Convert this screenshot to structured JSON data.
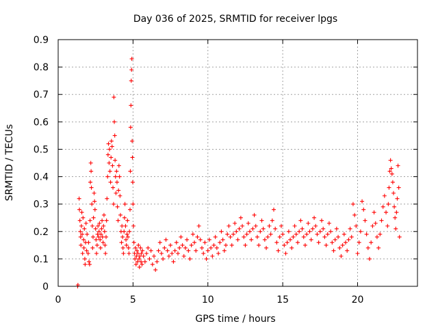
{
  "chart_data": {
    "type": "scatter",
    "title": "Day 036 of 2025, SRMTID for receiver lpgs",
    "xlabel": "GPS time / hours",
    "ylabel": "SRMTID / TECUs",
    "xlim": [
      0,
      24
    ],
    "ylim": [
      0,
      0.9
    ],
    "xticks": [
      0,
      5,
      10,
      15,
      20
    ],
    "xtick_labels": [
      "0",
      "5",
      "10",
      "15",
      "20"
    ],
    "yticks": [
      0,
      0.1,
      0.2,
      0.3,
      0.4,
      0.5,
      0.6,
      0.7,
      0.8,
      0.9
    ],
    "ytick_labels": [
      "0",
      "0.1",
      "0.2",
      "0.3",
      "0.4",
      "0.5",
      "0.6",
      "0.7",
      "0.8",
      "0.9"
    ],
    "grid": true,
    "marker": "plus",
    "color": "#ff0000",
    "series": [
      {
        "name": "SRMTID",
        "points": [
          [
            1.3,
            0.0
          ],
          [
            1.32,
            0.005
          ],
          [
            1.4,
            0.32
          ],
          [
            1.42,
            0.28
          ],
          [
            1.45,
            0.24
          ],
          [
            1.48,
            0.2
          ],
          [
            1.5,
            0.18
          ],
          [
            1.52,
            0.15
          ],
          [
            1.55,
            0.22
          ],
          [
            1.58,
            0.27
          ],
          [
            1.6,
            0.19
          ],
          [
            1.63,
            0.12
          ],
          [
            1.66,
            0.25
          ],
          [
            1.7,
            0.17
          ],
          [
            1.72,
            0.14
          ],
          [
            1.75,
            0.21
          ],
          [
            1.78,
            0.1
          ],
          [
            1.8,
            0.08
          ],
          [
            1.83,
            0.16
          ],
          [
            1.86,
            0.23
          ],
          [
            1.9,
            0.13
          ],
          [
            1.93,
            0.19
          ],
          [
            2.0,
            0.12
          ],
          [
            2.03,
            0.16
          ],
          [
            2.06,
            0.09
          ],
          [
            2.1,
            0.08
          ],
          [
            2.13,
            0.24
          ],
          [
            2.15,
            0.38
          ],
          [
            2.18,
            0.45
          ],
          [
            2.2,
            0.42
          ],
          [
            2.22,
            0.36
          ],
          [
            2.25,
            0.3
          ],
          [
            2.28,
            0.22
          ],
          [
            2.3,
            0.14
          ],
          [
            2.33,
            0.18
          ],
          [
            2.36,
            0.25
          ],
          [
            2.4,
            0.34
          ],
          [
            2.43,
            0.31
          ],
          [
            2.46,
            0.28
          ],
          [
            2.5,
            0.21
          ],
          [
            2.53,
            0.17
          ],
          [
            2.56,
            0.12
          ],
          [
            2.6,
            0.15
          ],
          [
            2.63,
            0.19
          ],
          [
            2.66,
            0.22
          ],
          [
            2.7,
            0.18
          ],
          [
            2.73,
            0.2
          ],
          [
            2.76,
            0.23
          ],
          [
            2.8,
            0.17
          ],
          [
            2.83,
            0.14
          ],
          [
            2.86,
            0.19
          ],
          [
            2.9,
            0.21
          ],
          [
            2.93,
            0.24
          ],
          [
            2.96,
            0.18
          ],
          [
            3.0,
            0.16
          ],
          [
            3.03,
            0.22
          ],
          [
            3.06,
            0.26
          ],
          [
            3.1,
            0.2
          ],
          [
            3.13,
            0.15
          ],
          [
            3.16,
            0.12
          ],
          [
            3.2,
            0.18
          ],
          [
            3.23,
            0.24
          ],
          [
            3.26,
            0.32
          ],
          [
            3.3,
            0.4
          ],
          [
            3.33,
            0.48
          ],
          [
            3.36,
            0.52
          ],
          [
            3.4,
            0.45
          ],
          [
            3.43,
            0.5
          ],
          [
            3.46,
            0.42
          ],
          [
            3.5,
            0.38
          ],
          [
            3.53,
            0.47
          ],
          [
            3.56,
            0.53
          ],
          [
            3.6,
            0.51
          ],
          [
            3.63,
            0.44
          ],
          [
            3.66,
            0.36
          ],
          [
            3.7,
            0.3
          ],
          [
            3.72,
            0.69
          ],
          [
            3.75,
            0.6
          ],
          [
            3.78,
            0.55
          ],
          [
            3.8,
            0.46
          ],
          [
            3.83,
            0.4
          ],
          [
            3.86,
            0.34
          ],
          [
            3.9,
            0.42
          ],
          [
            3.93,
            0.38
          ],
          [
            3.96,
            0.29
          ],
          [
            4.0,
            0.24
          ],
          [
            4.03,
            0.35
          ],
          [
            4.06,
            0.44
          ],
          [
            4.1,
            0.4
          ],
          [
            4.13,
            0.33
          ],
          [
            4.16,
            0.26
          ],
          [
            4.2,
            0.2
          ],
          [
            4.23,
            0.16
          ],
          [
            4.26,
            0.22
          ],
          [
            4.3,
            0.18
          ],
          [
            4.33,
            0.14
          ],
          [
            4.36,
            0.12
          ],
          [
            4.4,
            0.2
          ],
          [
            4.43,
            0.25
          ],
          [
            4.46,
            0.3
          ],
          [
            4.5,
            0.22
          ],
          [
            4.53,
            0.17
          ],
          [
            4.56,
            0.15
          ],
          [
            4.6,
            0.19
          ],
          [
            4.63,
            0.24
          ],
          [
            4.66,
            0.18
          ],
          [
            4.7,
            0.14
          ],
          [
            4.73,
            0.12
          ],
          [
            4.76,
            0.2
          ],
          [
            4.8,
            0.28
          ],
          [
            4.82,
            0.42
          ],
          [
            4.84,
            0.58
          ],
          [
            4.86,
            0.66
          ],
          [
            4.88,
            0.75
          ],
          [
            4.9,
            0.79
          ],
          [
            4.92,
            0.83
          ],
          [
            4.94,
            0.53
          ],
          [
            4.96,
            0.47
          ],
          [
            4.98,
            0.38
          ],
          [
            5.0,
            0.3
          ],
          [
            5.03,
            0.22
          ],
          [
            5.06,
            0.16
          ],
          [
            5.1,
            0.12
          ],
          [
            5.13,
            0.1
          ],
          [
            5.16,
            0.14
          ],
          [
            5.2,
            0.08
          ],
          [
            5.23,
            0.11
          ],
          [
            5.26,
            0.13
          ],
          [
            5.3,
            0.09
          ],
          [
            5.33,
            0.12
          ],
          [
            5.36,
            0.15
          ],
          [
            5.4,
            0.1
          ],
          [
            5.43,
            0.07
          ],
          [
            5.46,
            0.11
          ],
          [
            5.5,
            0.14
          ],
          [
            5.53,
            0.09
          ],
          [
            5.56,
            0.12
          ],
          [
            5.6,
            0.08
          ],
          [
            5.63,
            0.13
          ],
          [
            5.7,
            0.11
          ],
          [
            5.8,
            0.09
          ],
          [
            5.9,
            0.12
          ],
          [
            6.0,
            0.14
          ],
          [
            6.1,
            0.1
          ],
          [
            6.2,
            0.13
          ],
          [
            6.3,
            0.08
          ],
          [
            6.4,
            0.11
          ],
          [
            6.5,
            0.06
          ],
          [
            6.6,
            0.09
          ],
          [
            6.7,
            0.13
          ],
          [
            6.8,
            0.16
          ],
          [
            6.9,
            0.12
          ],
          [
            7.0,
            0.1
          ],
          [
            7.1,
            0.14
          ],
          [
            7.2,
            0.17
          ],
          [
            7.3,
            0.13
          ],
          [
            7.4,
            0.11
          ],
          [
            7.5,
            0.15
          ],
          [
            7.6,
            0.12
          ],
          [
            7.7,
            0.09
          ],
          [
            7.8,
            0.13
          ],
          [
            7.9,
            0.16
          ],
          [
            8.0,
            0.12
          ],
          [
            8.1,
            0.14
          ],
          [
            8.2,
            0.18
          ],
          [
            8.3,
            0.15
          ],
          [
            8.4,
            0.11
          ],
          [
            8.5,
            0.14
          ],
          [
            8.6,
            0.17
          ],
          [
            8.7,
            0.13
          ],
          [
            8.8,
            0.1
          ],
          [
            8.9,
            0.15
          ],
          [
            9.0,
            0.19
          ],
          [
            9.1,
            0.16
          ],
          [
            9.2,
            0.13
          ],
          [
            9.3,
            0.18
          ],
          [
            9.4,
            0.22
          ],
          [
            9.5,
            0.17
          ],
          [
            9.6,
            0.14
          ],
          [
            9.7,
            0.12
          ],
          [
            9.8,
            0.16
          ],
          [
            9.9,
            0.1
          ],
          [
            10.0,
            0.13
          ],
          [
            10.1,
            0.17
          ],
          [
            10.2,
            0.14
          ],
          [
            10.3,
            0.11
          ],
          [
            10.4,
            0.15
          ],
          [
            10.5,
            0.18
          ],
          [
            10.6,
            0.14
          ],
          [
            10.7,
            0.12
          ],
          [
            10.8,
            0.16
          ],
          [
            10.9,
            0.2
          ],
          [
            11.0,
            0.17
          ],
          [
            11.1,
            0.13
          ],
          [
            11.2,
            0.15
          ],
          [
            11.3,
            0.19
          ],
          [
            11.4,
            0.22
          ],
          [
            11.5,
            0.18
          ],
          [
            11.6,
            0.15
          ],
          [
            11.7,
            0.19
          ],
          [
            11.8,
            0.23
          ],
          [
            11.9,
            0.2
          ],
          [
            12.0,
            0.17
          ],
          [
            12.1,
            0.21
          ],
          [
            12.2,
            0.25
          ],
          [
            12.3,
            0.22
          ],
          [
            12.4,
            0.18
          ],
          [
            12.5,
            0.15
          ],
          [
            12.6,
            0.19
          ],
          [
            12.7,
            0.23
          ],
          [
            12.8,
            0.2
          ],
          [
            12.9,
            0.17
          ],
          [
            13.0,
            0.21
          ],
          [
            13.1,
            0.26
          ],
          [
            13.2,
            0.22
          ],
          [
            13.3,
            0.18
          ],
          [
            13.4,
            0.15
          ],
          [
            13.5,
            0.2
          ],
          [
            13.6,
            0.24
          ],
          [
            13.7,
            0.21
          ],
          [
            13.8,
            0.17
          ],
          [
            13.9,
            0.14
          ],
          [
            14.0,
            0.18
          ],
          [
            14.1,
            0.22
          ],
          [
            14.2,
            0.19
          ],
          [
            14.3,
            0.24
          ],
          [
            14.4,
            0.28
          ],
          [
            14.5,
            0.21
          ],
          [
            14.6,
            0.16
          ],
          [
            14.7,
            0.13
          ],
          [
            14.8,
            0.18
          ],
          [
            14.9,
            0.22
          ],
          [
            15.0,
            0.19
          ],
          [
            15.1,
            0.15
          ],
          [
            15.2,
            0.12
          ],
          [
            15.3,
            0.16
          ],
          [
            15.4,
            0.2
          ],
          [
            15.5,
            0.17
          ],
          [
            15.6,
            0.14
          ],
          [
            15.7,
            0.18
          ],
          [
            15.8,
            0.22
          ],
          [
            15.9,
            0.19
          ],
          [
            16.0,
            0.16
          ],
          [
            16.1,
            0.2
          ],
          [
            16.2,
            0.24
          ],
          [
            16.3,
            0.21
          ],
          [
            16.4,
            0.18
          ],
          [
            16.5,
            0.15
          ],
          [
            16.6,
            0.19
          ],
          [
            16.7,
            0.23
          ],
          [
            16.8,
            0.2
          ],
          [
            16.9,
            0.17
          ],
          [
            17.0,
            0.21
          ],
          [
            17.1,
            0.25
          ],
          [
            17.2,
            0.22
          ],
          [
            17.3,
            0.19
          ],
          [
            17.4,
            0.16
          ],
          [
            17.5,
            0.2
          ],
          [
            17.6,
            0.24
          ],
          [
            17.7,
            0.21
          ],
          [
            17.8,
            0.18
          ],
          [
            17.9,
            0.15
          ],
          [
            18.0,
            0.19
          ],
          [
            18.1,
            0.23
          ],
          [
            18.2,
            0.2
          ],
          [
            18.3,
            0.16
          ],
          [
            18.4,
            0.13
          ],
          [
            18.5,
            0.17
          ],
          [
            18.6,
            0.21
          ],
          [
            18.7,
            0.18
          ],
          [
            18.8,
            0.14
          ],
          [
            18.9,
            0.11
          ],
          [
            19.0,
            0.15
          ],
          [
            19.1,
            0.19
          ],
          [
            19.2,
            0.16
          ],
          [
            19.3,
            0.13
          ],
          [
            19.4,
            0.17
          ],
          [
            19.5,
            0.21
          ],
          [
            19.6,
            0.18
          ],
          [
            19.7,
            0.3
          ],
          [
            19.8,
            0.26
          ],
          [
            19.9,
            0.22
          ],
          [
            20.0,
            0.12
          ],
          [
            20.1,
            0.16
          ],
          [
            20.2,
            0.2
          ],
          [
            20.3,
            0.31
          ],
          [
            20.4,
            0.28
          ],
          [
            20.5,
            0.24
          ],
          [
            20.6,
            0.19
          ],
          [
            20.7,
            0.14
          ],
          [
            20.8,
            0.1
          ],
          [
            20.9,
            0.16
          ],
          [
            21.0,
            0.22
          ],
          [
            21.1,
            0.27
          ],
          [
            21.2,
            0.23
          ],
          [
            21.3,
            0.18
          ],
          [
            21.4,
            0.14
          ],
          [
            21.5,
            0.19
          ],
          [
            21.6,
            0.24
          ],
          [
            21.7,
            0.29
          ],
          [
            21.8,
            0.33
          ],
          [
            21.9,
            0.27
          ],
          [
            22.0,
            0.22
          ],
          [
            22.05,
            0.3
          ],
          [
            22.1,
            0.36
          ],
          [
            22.15,
            0.42
          ],
          [
            22.2,
            0.46
          ],
          [
            22.25,
            0.43
          ],
          [
            22.3,
            0.41
          ],
          [
            22.35,
            0.38
          ],
          [
            22.4,
            0.34
          ],
          [
            22.45,
            0.29
          ],
          [
            22.5,
            0.25
          ],
          [
            22.55,
            0.21
          ],
          [
            22.6,
            0.27
          ],
          [
            22.65,
            0.32
          ],
          [
            22.7,
            0.44
          ],
          [
            22.75,
            0.36
          ],
          [
            22.8,
            0.18
          ]
        ]
      }
    ]
  }
}
